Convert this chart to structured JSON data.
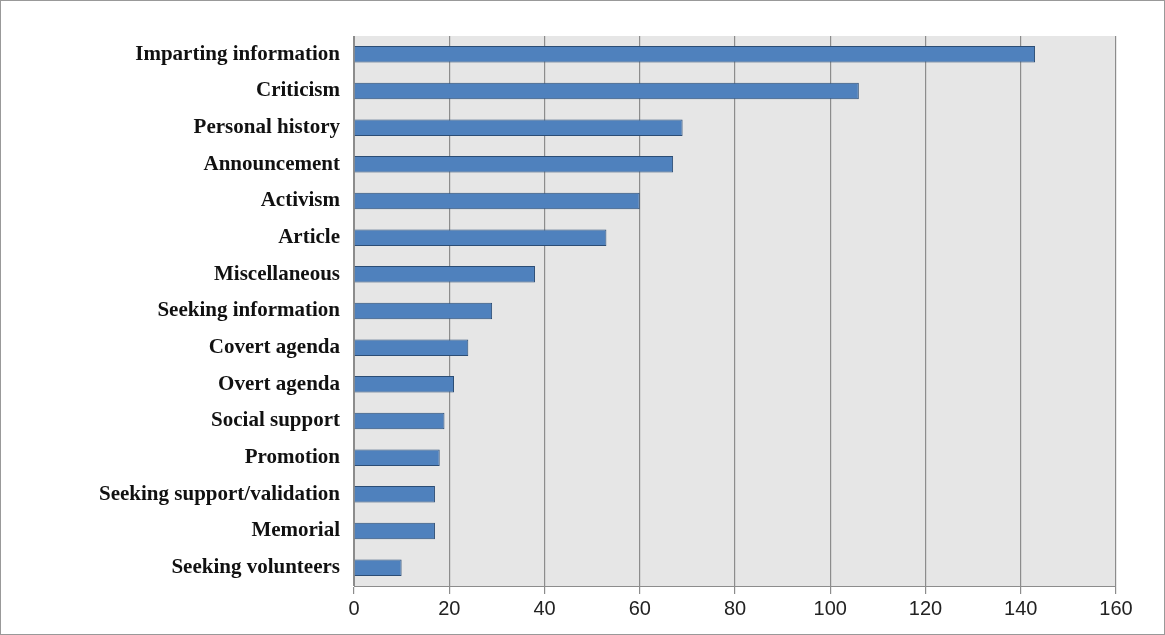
{
  "chart_data": {
    "type": "bar",
    "orientation": "horizontal",
    "categories": [
      "Imparting information",
      "Criticism",
      "Personal history",
      "Announcement",
      "Activism",
      "Article",
      "Miscellaneous",
      "Seeking information",
      "Covert agenda",
      "Overt agenda",
      "Social support",
      "Promotion",
      "Seeking support/validation",
      "Memorial",
      "Seeking volunteers"
    ],
    "values": [
      143,
      106,
      69,
      67,
      60,
      53,
      38,
      29,
      24,
      21,
      19,
      18,
      17,
      17,
      10
    ],
    "color": "#4f81bd",
    "xlim": [
      0,
      160
    ],
    "xticks": [
      0,
      20,
      40,
      60,
      80,
      100,
      120,
      140,
      160
    ],
    "grid": "x",
    "legend": false
  }
}
